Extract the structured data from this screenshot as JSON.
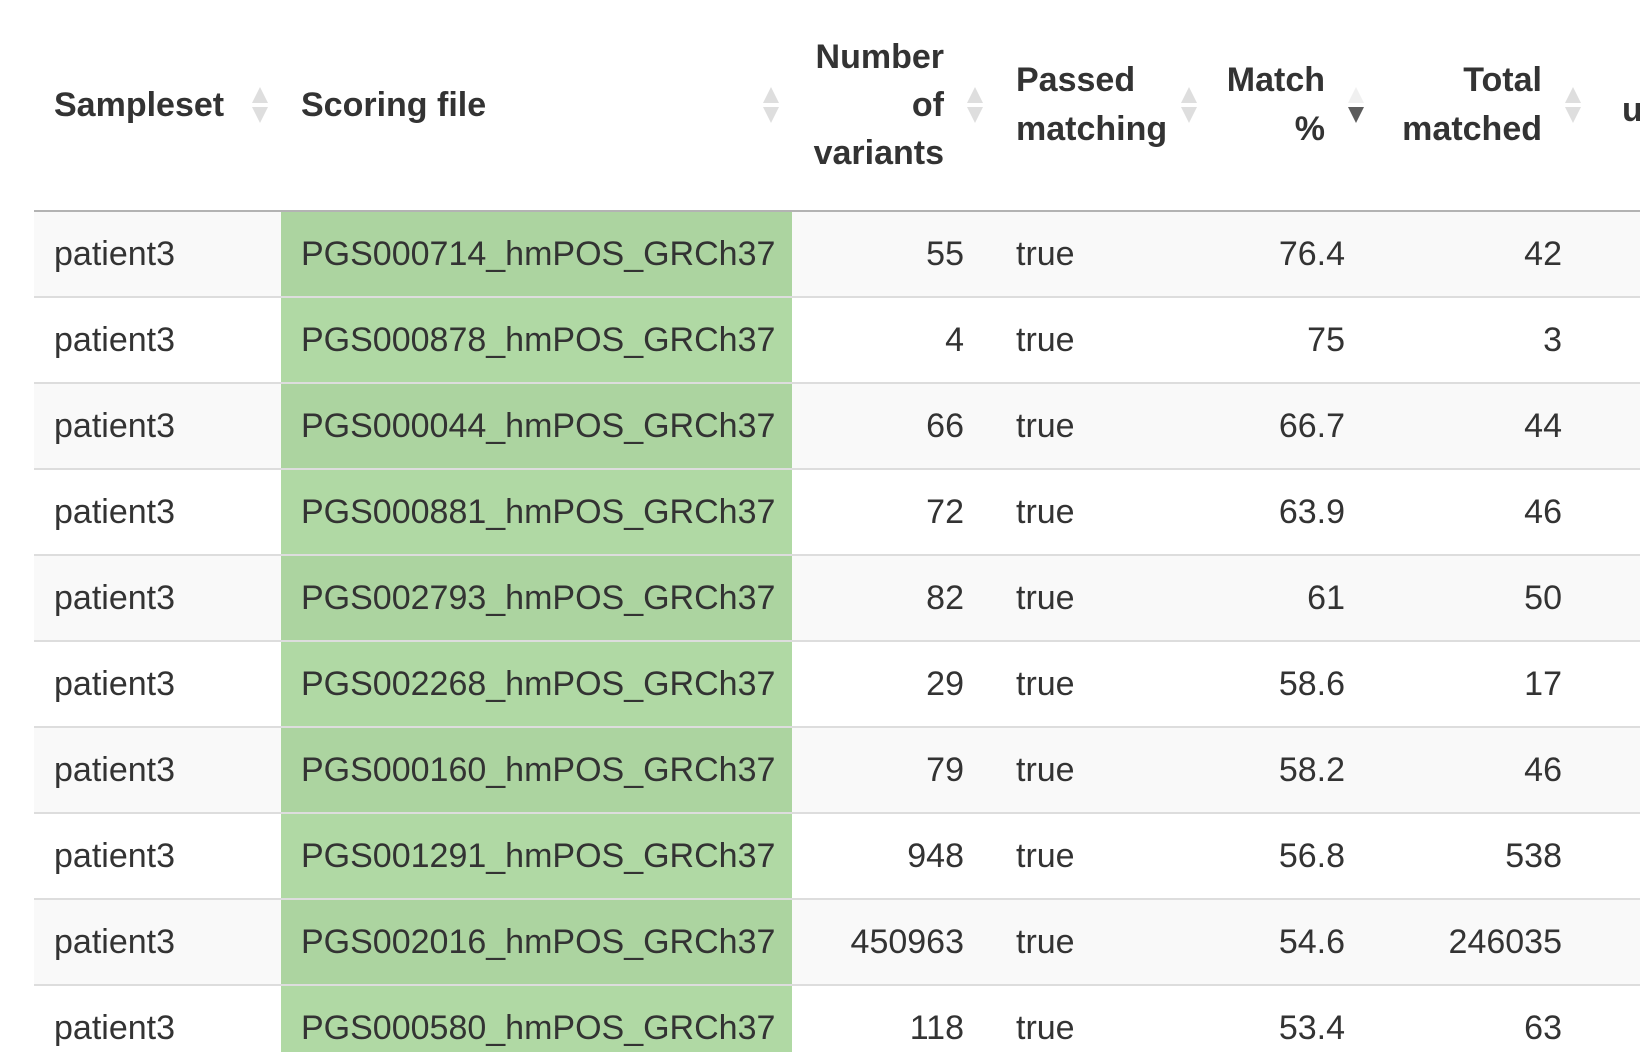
{
  "table": {
    "columns": [
      {
        "label": "Sampleset",
        "align": "left",
        "sort": "none"
      },
      {
        "label": "Scoring file",
        "align": "left",
        "sort": "none"
      },
      {
        "label": "Number of variants",
        "align": "right",
        "sort": "none"
      },
      {
        "label": "Passed matching",
        "align": "left",
        "sort": "none"
      },
      {
        "label": "Match %",
        "align": "right",
        "sort": "descending"
      },
      {
        "label": "Total matched",
        "align": "right",
        "sort": "none"
      },
      {
        "label": "u",
        "align": "left",
        "sort": "none"
      }
    ],
    "highlight_color": "#acd4a0",
    "rows": [
      {
        "sampleset": "patient3",
        "scoring_file": "PGS000714_hmPOS_GRCh37",
        "num_variants": "55",
        "passed_matching": "true",
        "match_pct": "76.4",
        "total_matched": "42"
      },
      {
        "sampleset": "patient3",
        "scoring_file": "PGS000878_hmPOS_GRCh37",
        "num_variants": "4",
        "passed_matching": "true",
        "match_pct": "75",
        "total_matched": "3"
      },
      {
        "sampleset": "patient3",
        "scoring_file": "PGS000044_hmPOS_GRCh37",
        "num_variants": "66",
        "passed_matching": "true",
        "match_pct": "66.7",
        "total_matched": "44"
      },
      {
        "sampleset": "patient3",
        "scoring_file": "PGS000881_hmPOS_GRCh37",
        "num_variants": "72",
        "passed_matching": "true",
        "match_pct": "63.9",
        "total_matched": "46"
      },
      {
        "sampleset": "patient3",
        "scoring_file": "PGS002793_hmPOS_GRCh37",
        "num_variants": "82",
        "passed_matching": "true",
        "match_pct": "61",
        "total_matched": "50"
      },
      {
        "sampleset": "patient3",
        "scoring_file": "PGS002268_hmPOS_GRCh37",
        "num_variants": "29",
        "passed_matching": "true",
        "match_pct": "58.6",
        "total_matched": "17"
      },
      {
        "sampleset": "patient3",
        "scoring_file": "PGS000160_hmPOS_GRCh37",
        "num_variants": "79",
        "passed_matching": "true",
        "match_pct": "58.2",
        "total_matched": "46"
      },
      {
        "sampleset": "patient3",
        "scoring_file": "PGS001291_hmPOS_GRCh37",
        "num_variants": "948",
        "passed_matching": "true",
        "match_pct": "56.8",
        "total_matched": "538"
      },
      {
        "sampleset": "patient3",
        "scoring_file": "PGS002016_hmPOS_GRCh37",
        "num_variants": "450963",
        "passed_matching": "true",
        "match_pct": "54.6",
        "total_matched": "246035"
      },
      {
        "sampleset": "patient3",
        "scoring_file": "PGS000580_hmPOS_GRCh37",
        "num_variants": "118",
        "passed_matching": "true",
        "match_pct": "53.4",
        "total_matched": "63"
      }
    ]
  }
}
